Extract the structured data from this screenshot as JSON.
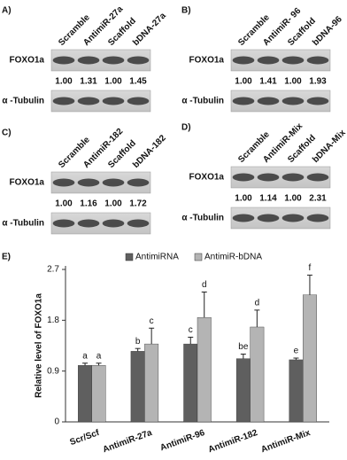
{
  "panels": [
    {
      "label": "A)",
      "lanes": [
        "Scramble",
        "AntimiR-27a",
        "Scaffold",
        "bDNA-27a"
      ],
      "proteins": [
        "FOXO1a",
        "α -Tubulin"
      ],
      "quantification": [
        "1.00",
        "1.31",
        "1.00",
        "1.45"
      ]
    },
    {
      "label": "B)",
      "lanes": [
        "Scramble",
        "AntimiR- 96",
        "Scaffold",
        "bDNA-96"
      ],
      "proteins": [
        "FOXO1a",
        "α -Tubulin"
      ],
      "quantification": [
        "1.00",
        "1.41",
        "1.00",
        "1.93"
      ]
    },
    {
      "label": "C)",
      "lanes": [
        "Scramble",
        "AntimiR-182",
        "Scaffold",
        "bDNA-182"
      ],
      "proteins": [
        "FOXO1a",
        "α -Tubulin"
      ],
      "quantification": [
        "1.00",
        "1.16",
        "1.00",
        "1.72"
      ]
    },
    {
      "label": "D)",
      "lanes": [
        "Scramble",
        "AntimiR-Mix",
        "Scaffold",
        "bDNA-Mix"
      ],
      "proteins": [
        "FOXO1a",
        "α -Tubulin"
      ],
      "quantification": [
        "1.00",
        "1.14",
        "1.00",
        "2.31"
      ]
    }
  ],
  "chart_data": {
    "type": "bar",
    "panel_label": "E)",
    "ylabel": "Relative level of FOXO1a",
    "categories": [
      "Scr/Scf",
      "AntimiR-27a",
      "AntimiR-96",
      "AntimiR-182",
      "AntimiR-Mix"
    ],
    "series": [
      {
        "name": "AntimiRNA",
        "color": "#5f5f5f",
        "values": [
          1.0,
          1.25,
          1.38,
          1.12,
          1.1
        ],
        "errors": [
          0.04,
          0.05,
          0.12,
          0.08,
          0.03
        ],
        "labels": [
          "a",
          "b",
          "c",
          "be",
          "e"
        ]
      },
      {
        "name": "AntimiR-bDNA",
        "color": "#b4b4b4",
        "values": [
          1.0,
          1.38,
          1.85,
          1.68,
          2.25
        ],
        "errors": [
          0.04,
          0.28,
          0.45,
          0.3,
          0.35
        ],
        "labels": [
          "a",
          "c",
          "d",
          "d",
          "f"
        ]
      }
    ],
    "ylim": [
      0,
      2.7
    ],
    "yticks": [
      0,
      0.9,
      1.8,
      2.7
    ]
  }
}
